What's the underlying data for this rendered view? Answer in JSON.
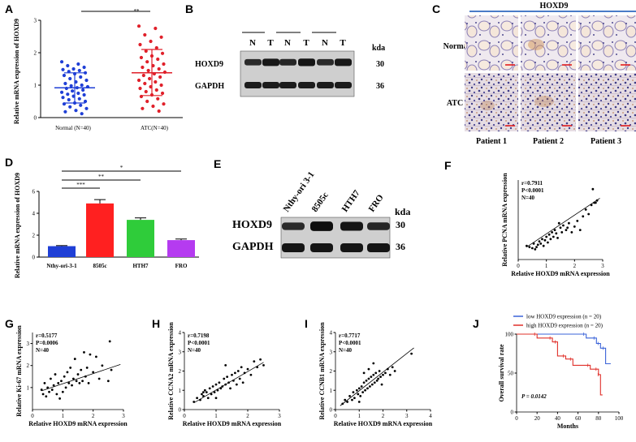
{
  "panels": {
    "A": "A",
    "B": "B",
    "C": "C",
    "D": "D",
    "E": "E",
    "F": "F",
    "G": "G",
    "H": "H",
    "I": "I",
    "J": "J"
  },
  "colors": {
    "normal": "#1f3fd6",
    "atc": "#e0202a",
    "nthy": "#1f3fd6",
    "s8505c": "#ff2020",
    "hth7": "#2fcc3a",
    "fro": "#b53bf0",
    "low": "#3a63d8",
    "high": "#e0302a",
    "heading_line": "#4a7cc7"
  },
  "chart_data": [
    {
      "panel": "A",
      "type": "scatter",
      "ylabel": "Relative mRNA expression of HOXD9",
      "categories": [
        "Normal (N=40)",
        "ATC(N=40)"
      ],
      "ylim": [
        0,
        3
      ],
      "yticks": [
        "0",
        "1",
        "2",
        "3"
      ],
      "significance": "**",
      "series": [
        {
          "category": "Normal (N=40)",
          "mean": 0.92,
          "sd_low": 0.45,
          "sd_high": 1.38,
          "values": [
            1.72,
            1.65,
            1.6,
            1.55,
            1.5,
            1.48,
            1.45,
            1.42,
            1.38,
            1.35,
            1.3,
            1.25,
            1.2,
            1.15,
            1.1,
            1.05,
            1.0,
            0.98,
            0.95,
            0.92,
            0.9,
            0.85,
            0.82,
            0.78,
            0.75,
            0.72,
            0.7,
            0.66,
            0.62,
            0.58,
            0.55,
            0.5,
            0.45,
            0.42,
            0.38,
            0.33,
            0.28,
            0.22,
            0.18,
            0.12
          ]
        },
        {
          "category": "ATC(N=40)",
          "mean": 1.38,
          "sd_low": 0.68,
          "sd_high": 2.1,
          "values": [
            2.82,
            2.75,
            2.55,
            2.48,
            2.35,
            2.25,
            2.15,
            2.05,
            1.98,
            1.9,
            1.85,
            1.8,
            1.72,
            1.65,
            1.6,
            1.55,
            1.5,
            1.45,
            1.4,
            1.35,
            1.3,
            1.25,
            1.2,
            1.15,
            1.1,
            1.05,
            1.0,
            0.95,
            0.9,
            0.85,
            0.8,
            0.75,
            0.7,
            0.65,
            0.58,
            0.5,
            0.42,
            0.35,
            0.28,
            0.2
          ]
        }
      ]
    },
    {
      "panel": "D",
      "type": "bar",
      "ylabel": "Relative mRNA expression of HOXD9",
      "categories": [
        "Nthy-ori-3-1",
        "8505c",
        "HTH7",
        "FRO"
      ],
      "values": [
        1.0,
        4.9,
        3.4,
        1.55
      ],
      "errors": [
        0.05,
        0.35,
        0.18,
        0.1
      ],
      "ylim": [
        0,
        6
      ],
      "yticks": [
        "0",
        "2",
        "4",
        "6"
      ],
      "significance": [
        "***",
        "**",
        "*"
      ]
    },
    {
      "panel": "F",
      "type": "scatter",
      "xlabel": "Relative HOXD9 mRNA expression",
      "ylabel": "Relative PCNA mRNA expression",
      "xlim": [
        0,
        3
      ],
      "ylim": [
        0,
        3.5
      ],
      "xticks": [
        "0",
        "1",
        "2",
        "3"
      ],
      "yticks": [],
      "annotation": [
        "r=0.7911",
        "P<0.0001",
        "N=40"
      ],
      "fit": [
        [
          0.3,
          0.55
        ],
        [
          2.9,
          2.7
        ]
      ],
      "points": [
        [
          0.3,
          0.6
        ],
        [
          0.4,
          0.55
        ],
        [
          0.5,
          0.5
        ],
        [
          0.55,
          0.7
        ],
        [
          0.6,
          0.45
        ],
        [
          0.7,
          0.65
        ],
        [
          0.75,
          0.8
        ],
        [
          0.8,
          0.7
        ],
        [
          0.85,
          0.9
        ],
        [
          0.9,
          0.6
        ],
        [
          0.95,
          0.85
        ],
        [
          1.0,
          1.0
        ],
        [
          1.05,
          0.75
        ],
        [
          1.1,
          1.1
        ],
        [
          1.15,
          0.9
        ],
        [
          1.2,
          1.2
        ],
        [
          1.25,
          1.0
        ],
        [
          1.3,
          1.3
        ],
        [
          1.35,
          1.15
        ],
        [
          1.4,
          0.95
        ],
        [
          1.5,
          1.4
        ],
        [
          1.55,
          1.2
        ],
        [
          1.6,
          1.5
        ],
        [
          1.7,
          1.3
        ],
        [
          1.8,
          1.6
        ],
        [
          1.9,
          1.2
        ],
        [
          2.0,
          1.45
        ],
        [
          2.1,
          1.7
        ],
        [
          2.2,
          1.3
        ],
        [
          2.3,
          1.9
        ],
        [
          2.4,
          2.2
        ],
        [
          2.5,
          2.0
        ],
        [
          2.6,
          2.4
        ],
        [
          2.65,
          3.1
        ],
        [
          2.7,
          2.5
        ],
        [
          2.75,
          2.5
        ],
        [
          2.8,
          2.6
        ],
        [
          1.45,
          1.6
        ],
        [
          0.65,
          0.55
        ],
        [
          1.75,
          1.4
        ]
      ]
    },
    {
      "panel": "G",
      "type": "scatter",
      "xlabel": "Relative HOXD9 mRNA expression",
      "ylabel": "Relative Ki-67 mRNA expression",
      "xlim": [
        0,
        3
      ],
      "ylim": [
        0,
        3.5
      ],
      "xticks": [
        "0",
        "1",
        "2",
        "3"
      ],
      "yticks": [
        "1",
        "2",
        "3"
      ],
      "annotation": [
        "r=0.5177",
        "P=0.0006",
        "N=40"
      ],
      "fit": [
        [
          0.3,
          0.85
        ],
        [
          2.9,
          2.05
        ]
      ],
      "points": [
        [
          0.3,
          0.9
        ],
        [
          0.35,
          0.7
        ],
        [
          0.4,
          1.2
        ],
        [
          0.45,
          0.6
        ],
        [
          0.5,
          1.0
        ],
        [
          0.55,
          0.8
        ],
        [
          0.6,
          1.4
        ],
        [
          0.65,
          0.9
        ],
        [
          0.7,
          1.1
        ],
        [
          0.75,
          1.6
        ],
        [
          0.8,
          0.7
        ],
        [
          0.85,
          1.2
        ],
        [
          0.9,
          0.5
        ],
        [
          0.95,
          1.3
        ],
        [
          1.0,
          0.8
        ],
        [
          1.05,
          1.5
        ],
        [
          1.1,
          1.0
        ],
        [
          1.15,
          1.7
        ],
        [
          1.2,
          1.2
        ],
        [
          1.25,
          1.9
        ],
        [
          1.3,
          1.1
        ],
        [
          1.35,
          1.4
        ],
        [
          1.4,
          2.3
        ],
        [
          1.45,
          1.3
        ],
        [
          1.5,
          1.6
        ],
        [
          1.55,
          1.2
        ],
        [
          1.6,
          1.8
        ],
        [
          1.65,
          1.3
        ],
        [
          1.7,
          2.6
        ],
        [
          1.75,
          1.5
        ],
        [
          1.8,
          1.9
        ],
        [
          1.85,
          1.2
        ],
        [
          1.9,
          2.5
        ],
        [
          2.0,
          1.7
        ],
        [
          2.1,
          2.4
        ],
        [
          2.2,
          1.4
        ],
        [
          2.3,
          2.0
        ],
        [
          2.5,
          1.3
        ],
        [
          2.55,
          3.1
        ],
        [
          2.6,
          1.8
        ]
      ]
    },
    {
      "panel": "H",
      "type": "scatter",
      "xlabel": "Relative HOXD9 mRNA expression",
      "ylabel": "Relative CCNA2 mRNA expression",
      "xlim": [
        0,
        3
      ],
      "ylim": [
        0,
        4
      ],
      "xticks": [
        "0",
        "1",
        "2",
        "3"
      ],
      "yticks": [
        "0",
        "1",
        "2",
        "3",
        "4"
      ],
      "annotation": [
        "r=0.7198",
        "P<0.0001",
        "N=40"
      ],
      "fit": [
        [
          0.3,
          0.35
        ],
        [
          2.5,
          2.45
        ]
      ],
      "points": [
        [
          0.3,
          0.4
        ],
        [
          0.4,
          0.6
        ],
        [
          0.5,
          0.5
        ],
        [
          0.55,
          0.8
        ],
        [
          0.6,
          0.7
        ],
        [
          0.65,
          1.0
        ],
        [
          0.7,
          0.9
        ],
        [
          0.75,
          0.6
        ],
        [
          0.8,
          1.1
        ],
        [
          0.85,
          0.8
        ],
        [
          0.9,
          1.2
        ],
        [
          0.95,
          0.9
        ],
        [
          1.0,
          1.3
        ],
        [
          1.05,
          1.0
        ],
        [
          1.1,
          1.4
        ],
        [
          1.15,
          1.1
        ],
        [
          1.2,
          1.2
        ],
        [
          1.25,
          1.6
        ],
        [
          1.3,
          1.3
        ],
        [
          1.35,
          1.7
        ],
        [
          1.4,
          1.4
        ],
        [
          1.45,
          1.1
        ],
        [
          1.5,
          1.8
        ],
        [
          1.55,
          1.5
        ],
        [
          1.6,
          1.9
        ],
        [
          1.65,
          1.3
        ],
        [
          1.7,
          2.0
        ],
        [
          1.75,
          1.6
        ],
        [
          1.8,
          2.2
        ],
        [
          1.85,
          1.4
        ],
        [
          1.9,
          1.9
        ],
        [
          2.0,
          2.1
        ],
        [
          2.1,
          1.8
        ],
        [
          2.2,
          2.5
        ],
        [
          2.3,
          2.2
        ],
        [
          2.4,
          2.6
        ],
        [
          2.5,
          2.3
        ],
        [
          1.0,
          0.6
        ],
        [
          0.6,
          0.9
        ],
        [
          1.3,
          2.3
        ]
      ]
    },
    {
      "panel": "I",
      "type": "scatter",
      "xlabel": "Relative HOXD9 mRNA expression",
      "ylabel": "Relative CCNB1 mRNA expression",
      "xlim": [
        0,
        4
      ],
      "ylim": [
        0,
        4
      ],
      "xticks": [
        "0",
        "1",
        "2",
        "3",
        "4"
      ],
      "yticks": [
        "0",
        "1",
        "2",
        "3",
        "4"
      ],
      "annotation": [
        "r=0.7717",
        "P<0.0001",
        "N=40"
      ],
      "fit": [
        [
          0.2,
          0.2
        ],
        [
          3.3,
          3.2
        ]
      ],
      "points": [
        [
          0.3,
          0.3
        ],
        [
          0.4,
          0.5
        ],
        [
          0.5,
          0.4
        ],
        [
          0.6,
          0.7
        ],
        [
          0.7,
          0.5
        ],
        [
          0.75,
          0.9
        ],
        [
          0.8,
          0.6
        ],
        [
          0.9,
          1.0
        ],
        [
          0.95,
          0.8
        ],
        [
          1.0,
          1.1
        ],
        [
          1.05,
          0.7
        ],
        [
          1.1,
          1.2
        ],
        [
          1.15,
          0.9
        ],
        [
          1.2,
          1.4
        ],
        [
          1.25,
          1.0
        ],
        [
          1.3,
          1.5
        ],
        [
          1.35,
          1.1
        ],
        [
          1.4,
          1.6
        ],
        [
          1.45,
          1.2
        ],
        [
          1.5,
          1.7
        ],
        [
          1.55,
          1.3
        ],
        [
          1.6,
          1.8
        ],
        [
          1.65,
          1.4
        ],
        [
          1.7,
          1.9
        ],
        [
          1.75,
          1.5
        ],
        [
          1.8,
          1.6
        ],
        [
          1.85,
          2.0
        ],
        [
          1.9,
          1.7
        ],
        [
          1.95,
          1.3
        ],
        [
          2.0,
          1.8
        ],
        [
          2.1,
          1.9
        ],
        [
          2.2,
          2.1
        ],
        [
          2.3,
          1.8
        ],
        [
          2.4,
          2.2
        ],
        [
          2.5,
          2.0
        ],
        [
          1.2,
          1.9
        ],
        [
          1.4,
          2.1
        ],
        [
          1.6,
          2.4
        ],
        [
          3.2,
          2.9
        ],
        [
          1.0,
          0.4
        ]
      ]
    },
    {
      "panel": "J",
      "type": "line",
      "xlabel": "Months",
      "ylabel": "Overall survival rate",
      "xlim": [
        0,
        100
      ],
      "ylim": [
        0,
        100
      ],
      "xticks": [
        "0",
        "20",
        "40",
        "60",
        "80",
        "100"
      ],
      "yticks": [
        "0",
        "50",
        "100"
      ],
      "pvalue": "P = 0.0142",
      "series": [
        {
          "name": "low HOXD9 expression (n = 20)",
          "steps": [
            [
              0,
              100
            ],
            [
              68,
              100
            ],
            [
              68,
              95
            ],
            [
              78,
              95
            ],
            [
              78,
              88
            ],
            [
              82,
              88
            ],
            [
              82,
              82
            ],
            [
              87,
              82
            ],
            [
              87,
              62
            ],
            [
              92,
              62
            ]
          ]
        },
        {
          "name": "high HOXD9 expression (n = 20)",
          "steps": [
            [
              0,
              100
            ],
            [
              20,
              100
            ],
            [
              20,
              95
            ],
            [
              35,
              95
            ],
            [
              35,
              90
            ],
            [
              40,
              90
            ],
            [
              40,
              72
            ],
            [
              48,
              72
            ],
            [
              48,
              68
            ],
            [
              55,
              68
            ],
            [
              55,
              60
            ],
            [
              72,
              60
            ],
            [
              72,
              55
            ],
            [
              80,
              55
            ],
            [
              80,
              48
            ],
            [
              82,
              48
            ],
            [
              82,
              22
            ],
            [
              84,
              22
            ]
          ]
        }
      ]
    }
  ],
  "western_B": {
    "lanes": [
      "N",
      "T",
      "N",
      "T",
      "N",
      "T"
    ],
    "rows": [
      "HOXD9",
      "GAPDH"
    ],
    "kda_header": "kda",
    "kda": [
      "30",
      "36"
    ],
    "hoxd9_intensity": [
      0.55,
      0.8,
      0.6,
      0.85,
      0.55,
      0.8
    ]
  },
  "western_E": {
    "lanes": [
      "Nthy-ori 3-1",
      "8505c",
      "HTH7",
      "FRO"
    ],
    "rows": [
      "HOXD9",
      "GAPDH"
    ],
    "kda_header": "kda",
    "kda": [
      "30",
      "36"
    ],
    "hoxd9_intensity": [
      0.55,
      0.95,
      0.85,
      0.6
    ]
  },
  "ihc_C": {
    "title": "HOXD9",
    "rows": [
      "Normal",
      "ATC"
    ],
    "columns": [
      "Patient 1",
      "Patient 2",
      "Patient 3"
    ]
  }
}
